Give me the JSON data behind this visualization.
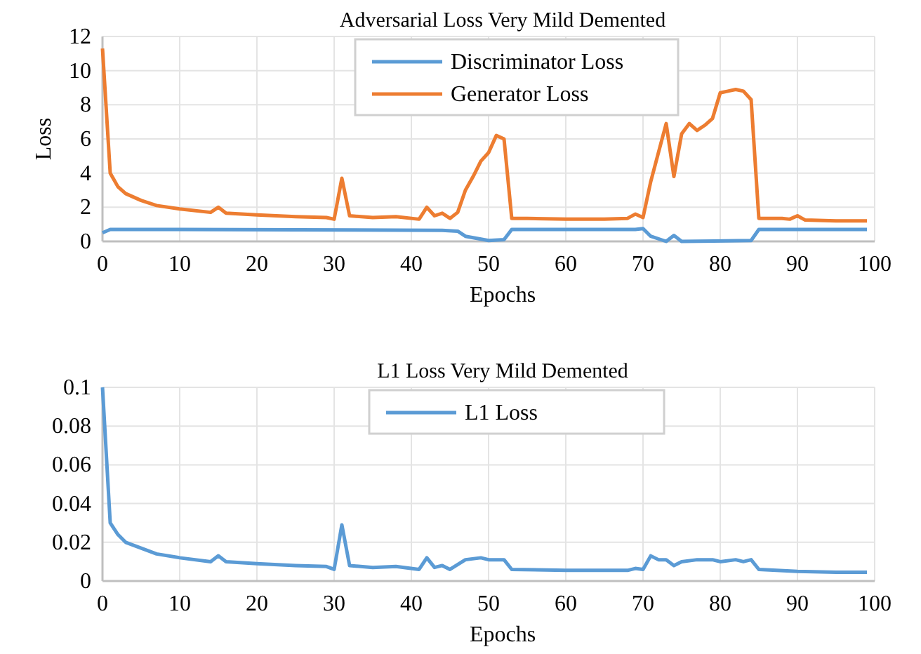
{
  "chart_data": [
    {
      "type": "line",
      "title": "Adversarial Loss Very Mild Demented",
      "xlabel": "Epochs",
      "ylabel": "Loss",
      "xlim": [
        0,
        100
      ],
      "xticks": [
        0,
        10,
        20,
        30,
        40,
        50,
        60,
        70,
        80,
        90,
        100
      ],
      "ylim": [
        0,
        12
      ],
      "yticks": [
        0,
        2,
        4,
        6,
        8,
        10,
        12
      ],
      "grid": true,
      "legend": "top",
      "marker": "none",
      "line_style": "solid",
      "series": [
        {
          "name": "Discriminator Loss",
          "color": "#5b9bd5",
          "x": [
            0,
            1,
            10,
            44,
            46,
            47,
            50,
            52,
            53,
            69,
            70,
            71,
            73,
            74,
            75,
            84,
            85,
            99
          ],
          "values": [
            0.5,
            0.7,
            0.7,
            0.65,
            0.6,
            0.3,
            0.05,
            0.1,
            0.7,
            0.7,
            0.75,
            0.3,
            0,
            0.35,
            0,
            0.05,
            0.7,
            0.7
          ]
        },
        {
          "name": "Generator Loss",
          "color": "#ed7d31",
          "x": [
            0,
            1,
            2,
            3,
            5,
            7,
            10,
            14,
            15,
            16,
            20,
            25,
            29,
            30,
            31,
            32,
            35,
            38,
            41,
            42,
            43,
            44,
            45,
            46,
            47,
            48,
            49,
            50,
            51,
            52,
            53,
            55,
            60,
            65,
            68,
            69,
            70,
            71,
            72,
            73,
            74,
            75,
            76,
            77,
            78,
            79,
            80,
            81,
            82,
            83,
            84,
            85,
            88,
            89,
            90,
            91,
            95,
            99
          ],
          "values": [
            11.3,
            4,
            3.2,
            2.8,
            2.4,
            2.1,
            1.9,
            1.7,
            2,
            1.65,
            1.55,
            1.45,
            1.4,
            1.3,
            3.7,
            1.5,
            1.4,
            1.45,
            1.3,
            2,
            1.5,
            1.65,
            1.35,
            1.7,
            3,
            3.8,
            4.7,
            5.2,
            6.2,
            6,
            1.35,
            1.35,
            1.3,
            1.3,
            1.35,
            1.6,
            1.4,
            3.5,
            5.2,
            6.9,
            3.8,
            6.3,
            6.9,
            6.5,
            6.8,
            7.2,
            8.7,
            8.8,
            8.9,
            8.8,
            8.3,
            1.35,
            1.35,
            1.3,
            1.5,
            1.25,
            1.2,
            1.2
          ]
        }
      ]
    },
    {
      "type": "line",
      "title": "L1 Loss Very Mild Demented",
      "xlabel": "Epochs",
      "xlim": [
        0,
        100
      ],
      "xticks": [
        0,
        10,
        20,
        30,
        40,
        50,
        60,
        70,
        80,
        90,
        100
      ],
      "ylim": [
        0,
        0.1
      ],
      "yticks": [
        0,
        0.02,
        0.04,
        0.06,
        0.08,
        0.1
      ],
      "grid": true,
      "legend": "top",
      "marker": "none",
      "line_style": "solid",
      "series": [
        {
          "name": "L1 Loss",
          "color": "#5b9bd5",
          "x": [
            0,
            1,
            2,
            3,
            5,
            7,
            10,
            14,
            15,
            16,
            20,
            25,
            29,
            30,
            31,
            32,
            35,
            38,
            41,
            42,
            43,
            44,
            45,
            47,
            49,
            50,
            52,
            53,
            60,
            68,
            69,
            70,
            71,
            72,
            73,
            74,
            75,
            77,
            79,
            80,
            82,
            83,
            84,
            85,
            90,
            95,
            99
          ],
          "values": [
            0.1,
            0.03,
            0.024,
            0.02,
            0.017,
            0.014,
            0.012,
            0.01,
            0.013,
            0.01,
            0.009,
            0.008,
            0.0075,
            0.006,
            0.029,
            0.008,
            0.007,
            0.0075,
            0.006,
            0.012,
            0.007,
            0.008,
            0.006,
            0.011,
            0.012,
            0.011,
            0.011,
            0.006,
            0.0055,
            0.0055,
            0.0065,
            0.006,
            0.013,
            0.011,
            0.011,
            0.008,
            0.01,
            0.011,
            0.011,
            0.01,
            0.011,
            0.01,
            0.011,
            0.006,
            0.005,
            0.0045,
            0.0045
          ]
        }
      ]
    }
  ]
}
